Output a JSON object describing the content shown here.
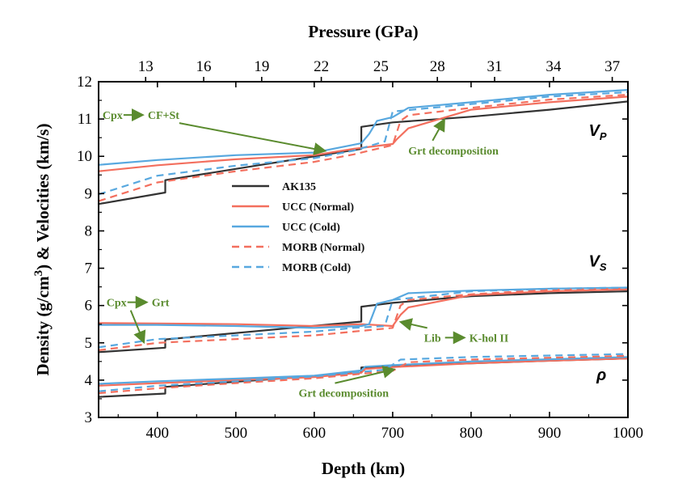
{
  "chart_data": {
    "type": "line",
    "xlabel": "Depth (km)",
    "x2label": "Pressure (GPa)",
    "ylabel_parts": [
      "Density (g/cm",
      "3",
      ") & Velocities (km/s)"
    ],
    "xlim": [
      325,
      1000
    ],
    "ylim": [
      3,
      12
    ],
    "x_ticks": [
      400,
      500,
      600,
      700,
      800,
      900,
      1000
    ],
    "y_ticks": [
      3,
      4,
      5,
      6,
      7,
      8,
      9,
      10,
      11,
      12
    ],
    "x2_ticks": [
      {
        "label": "13",
        "depth": 385
      },
      {
        "label": "16",
        "depth": 459
      },
      {
        "label": "19",
        "depth": 533
      },
      {
        "label": "22",
        "depth": 609
      },
      {
        "label": "25",
        "depth": 685
      },
      {
        "label": "28",
        "depth": 757
      },
      {
        "label": "31",
        "depth": 830
      },
      {
        "label": "34",
        "depth": 905
      },
      {
        "label": "37",
        "depth": 980
      }
    ],
    "grid": false,
    "legend_position": "center-left",
    "panel_labels": [
      {
        "main": "V",
        "sub": "P",
        "x": 950,
        "y": 10.55
      },
      {
        "main": "V",
        "sub": "S",
        "x": 950,
        "y": 7.05
      },
      {
        "main": "ρ",
        "sub": "",
        "x": 960,
        "y": 4.0
      }
    ],
    "series": [
      {
        "name": "AK135",
        "color": "#333333",
        "dash": false,
        "show_in_legend": true,
        "property": "Vp",
        "x": [
          325,
          410,
          410,
          660,
          660,
          700,
          800,
          900,
          1000
        ],
        "y": [
          8.72,
          9.03,
          9.36,
          10.2,
          10.79,
          10.91,
          11.06,
          11.25,
          11.47
        ]
      },
      {
        "name": "UCC (Normal)",
        "color": "#f36f5e",
        "dash": false,
        "show_in_legend": true,
        "property": "Vp",
        "x": [
          325,
          400,
          500,
          600,
          650,
          700,
          705,
          720,
          800,
          900,
          1000
        ],
        "y": [
          9.6,
          9.76,
          9.92,
          10.03,
          10.2,
          10.33,
          10.45,
          10.75,
          11.25,
          11.45,
          11.6
        ]
      },
      {
        "name": "UCC (Cold)",
        "color": "#58a8df",
        "dash": false,
        "show_in_legend": true,
        "property": "Vp",
        "x": [
          325,
          400,
          500,
          600,
          660,
          670,
          680,
          700,
          720,
          800,
          900,
          1000
        ],
        "y": [
          9.77,
          9.9,
          10.03,
          10.1,
          10.35,
          10.6,
          10.95,
          11.05,
          11.3,
          11.45,
          11.65,
          11.78
        ]
      },
      {
        "name": "MORB (Normal)",
        "color": "#f36f5e",
        "dash": true,
        "show_in_legend": true,
        "property": "Vp",
        "x": [
          325,
          400,
          500,
          600,
          650,
          700,
          710,
          720,
          800,
          900,
          1000
        ],
        "y": [
          8.8,
          9.3,
          9.6,
          9.85,
          10.05,
          10.3,
          10.95,
          11.1,
          11.3,
          11.52,
          11.65
        ]
      },
      {
        "name": "MORB (Cold)",
        "color": "#58a8df",
        "dash": true,
        "show_in_legend": true,
        "property": "Vp",
        "x": [
          325,
          400,
          500,
          600,
          650,
          690,
          700,
          800,
          900,
          1000
        ],
        "y": [
          8.98,
          9.48,
          9.75,
          9.95,
          10.15,
          10.4,
          11.2,
          11.4,
          11.6,
          11.72
        ]
      },
      {
        "name": "AK135",
        "color": "#333333",
        "dash": false,
        "show_in_legend": false,
        "property": "Vs",
        "x": [
          325,
          410,
          410,
          660,
          660,
          700,
          800,
          900,
          1000
        ],
        "y": [
          4.75,
          4.87,
          5.09,
          5.57,
          5.97,
          6.07,
          6.25,
          6.33,
          6.38
        ]
      },
      {
        "name": "UCC (Normal)",
        "color": "#f36f5e",
        "dash": false,
        "show_in_legend": false,
        "property": "Vs",
        "x": [
          325,
          400,
          500,
          600,
          660,
          700,
          710,
          720,
          800,
          900,
          1000
        ],
        "y": [
          5.53,
          5.52,
          5.5,
          5.45,
          5.5,
          5.45,
          5.75,
          5.95,
          6.28,
          6.38,
          6.43
        ]
      },
      {
        "name": "UCC (Cold)",
        "color": "#58a8df",
        "dash": false,
        "show_in_legend": false,
        "property": "Vs",
        "x": [
          325,
          400,
          500,
          600,
          660,
          670,
          680,
          700,
          720,
          800,
          900,
          1000
        ],
        "y": [
          5.48,
          5.48,
          5.45,
          5.4,
          5.45,
          5.5,
          6.05,
          6.15,
          6.33,
          6.4,
          6.45,
          6.48
        ]
      },
      {
        "name": "MORB (Normal)",
        "color": "#f36f5e",
        "dash": true,
        "show_in_legend": false,
        "property": "Vs",
        "x": [
          325,
          400,
          500,
          600,
          650,
          700,
          710,
          720,
          800,
          900,
          1000
        ],
        "y": [
          4.8,
          5.0,
          5.1,
          5.2,
          5.3,
          5.4,
          6.0,
          6.15,
          6.3,
          6.42,
          6.45
        ]
      },
      {
        "name": "MORB (Cold)",
        "color": "#58a8df",
        "dash": true,
        "show_in_legend": false,
        "property": "Vs",
        "x": [
          325,
          400,
          500,
          600,
          650,
          690,
          700,
          800,
          900,
          1000
        ],
        "y": [
          4.88,
          5.1,
          5.2,
          5.3,
          5.4,
          5.45,
          6.15,
          6.38,
          6.45,
          6.48
        ]
      },
      {
        "name": "AK135",
        "color": "#333333",
        "dash": false,
        "show_in_legend": false,
        "property": "Density",
        "x": [
          325,
          410,
          410,
          660,
          660,
          700,
          800,
          900,
          1000
        ],
        "y": [
          3.55,
          3.64,
          3.82,
          4.2,
          4.34,
          4.38,
          4.45,
          4.52,
          4.58
        ]
      },
      {
        "name": "UCC (Normal)",
        "color": "#f36f5e",
        "dash": false,
        "show_in_legend": false,
        "property": "Density",
        "x": [
          325,
          400,
          500,
          600,
          660,
          665,
          700,
          800,
          900,
          1000
        ],
        "y": [
          3.85,
          3.92,
          4.0,
          4.08,
          4.2,
          4.3,
          4.35,
          4.45,
          4.52,
          4.58
        ]
      },
      {
        "name": "UCC (Cold)",
        "color": "#58a8df",
        "dash": false,
        "show_in_legend": false,
        "property": "Density",
        "x": [
          325,
          400,
          500,
          600,
          660,
          665,
          700,
          800,
          900,
          1000
        ],
        "y": [
          3.9,
          3.97,
          4.04,
          4.12,
          4.26,
          4.36,
          4.4,
          4.5,
          4.56,
          4.62
        ]
      },
      {
        "name": "MORB (Normal)",
        "color": "#f36f5e",
        "dash": true,
        "show_in_legend": false,
        "property": "Density",
        "x": [
          325,
          400,
          500,
          600,
          650,
          700,
          720,
          800,
          900,
          1000
        ],
        "y": [
          3.65,
          3.78,
          3.92,
          4.05,
          4.15,
          4.25,
          4.48,
          4.55,
          4.6,
          4.65
        ]
      },
      {
        "name": "MORB (Cold)",
        "color": "#58a8df",
        "dash": true,
        "show_in_legend": false,
        "property": "Density",
        "x": [
          325,
          400,
          500,
          600,
          650,
          690,
          710,
          800,
          900,
          1000
        ],
        "y": [
          3.7,
          3.85,
          3.97,
          4.1,
          4.2,
          4.28,
          4.55,
          4.62,
          4.66,
          4.7
        ]
      }
    ],
    "annotations": [
      {
        "text": "Cpx",
        "phase2": "CF+St",
        "arrow_between": true,
        "x": 330,
        "y": 11.0,
        "pointer": {
          "x": 612,
          "y": 10.15
        },
        "color": "#5a8b2e"
      },
      {
        "text": "Grt decomposition",
        "x": 720,
        "y": 10.05,
        "pointer": {
          "x": 765,
          "y": 10.95
        },
        "color": "#5a8b2e"
      },
      {
        "text": "Cpx",
        "phase2": "Grt",
        "arrow_between": true,
        "x": 335,
        "y": 5.98,
        "pointer": {
          "x": 382,
          "y": 5.05
        },
        "color": "#5a8b2e"
      },
      {
        "text": "Lib",
        "phase2": "K-hol II",
        "arrow_between": true,
        "x": 740,
        "y": 5.03,
        "pointer": {
          "x": 712,
          "y": 5.55
        },
        "color": "#5a8b2e"
      },
      {
        "text": "Grt decomposition",
        "x": 580,
        "y": 3.55,
        "pointer": {
          "x": 700,
          "y": 4.28
        },
        "color": "#5a8b2e"
      }
    ]
  }
}
